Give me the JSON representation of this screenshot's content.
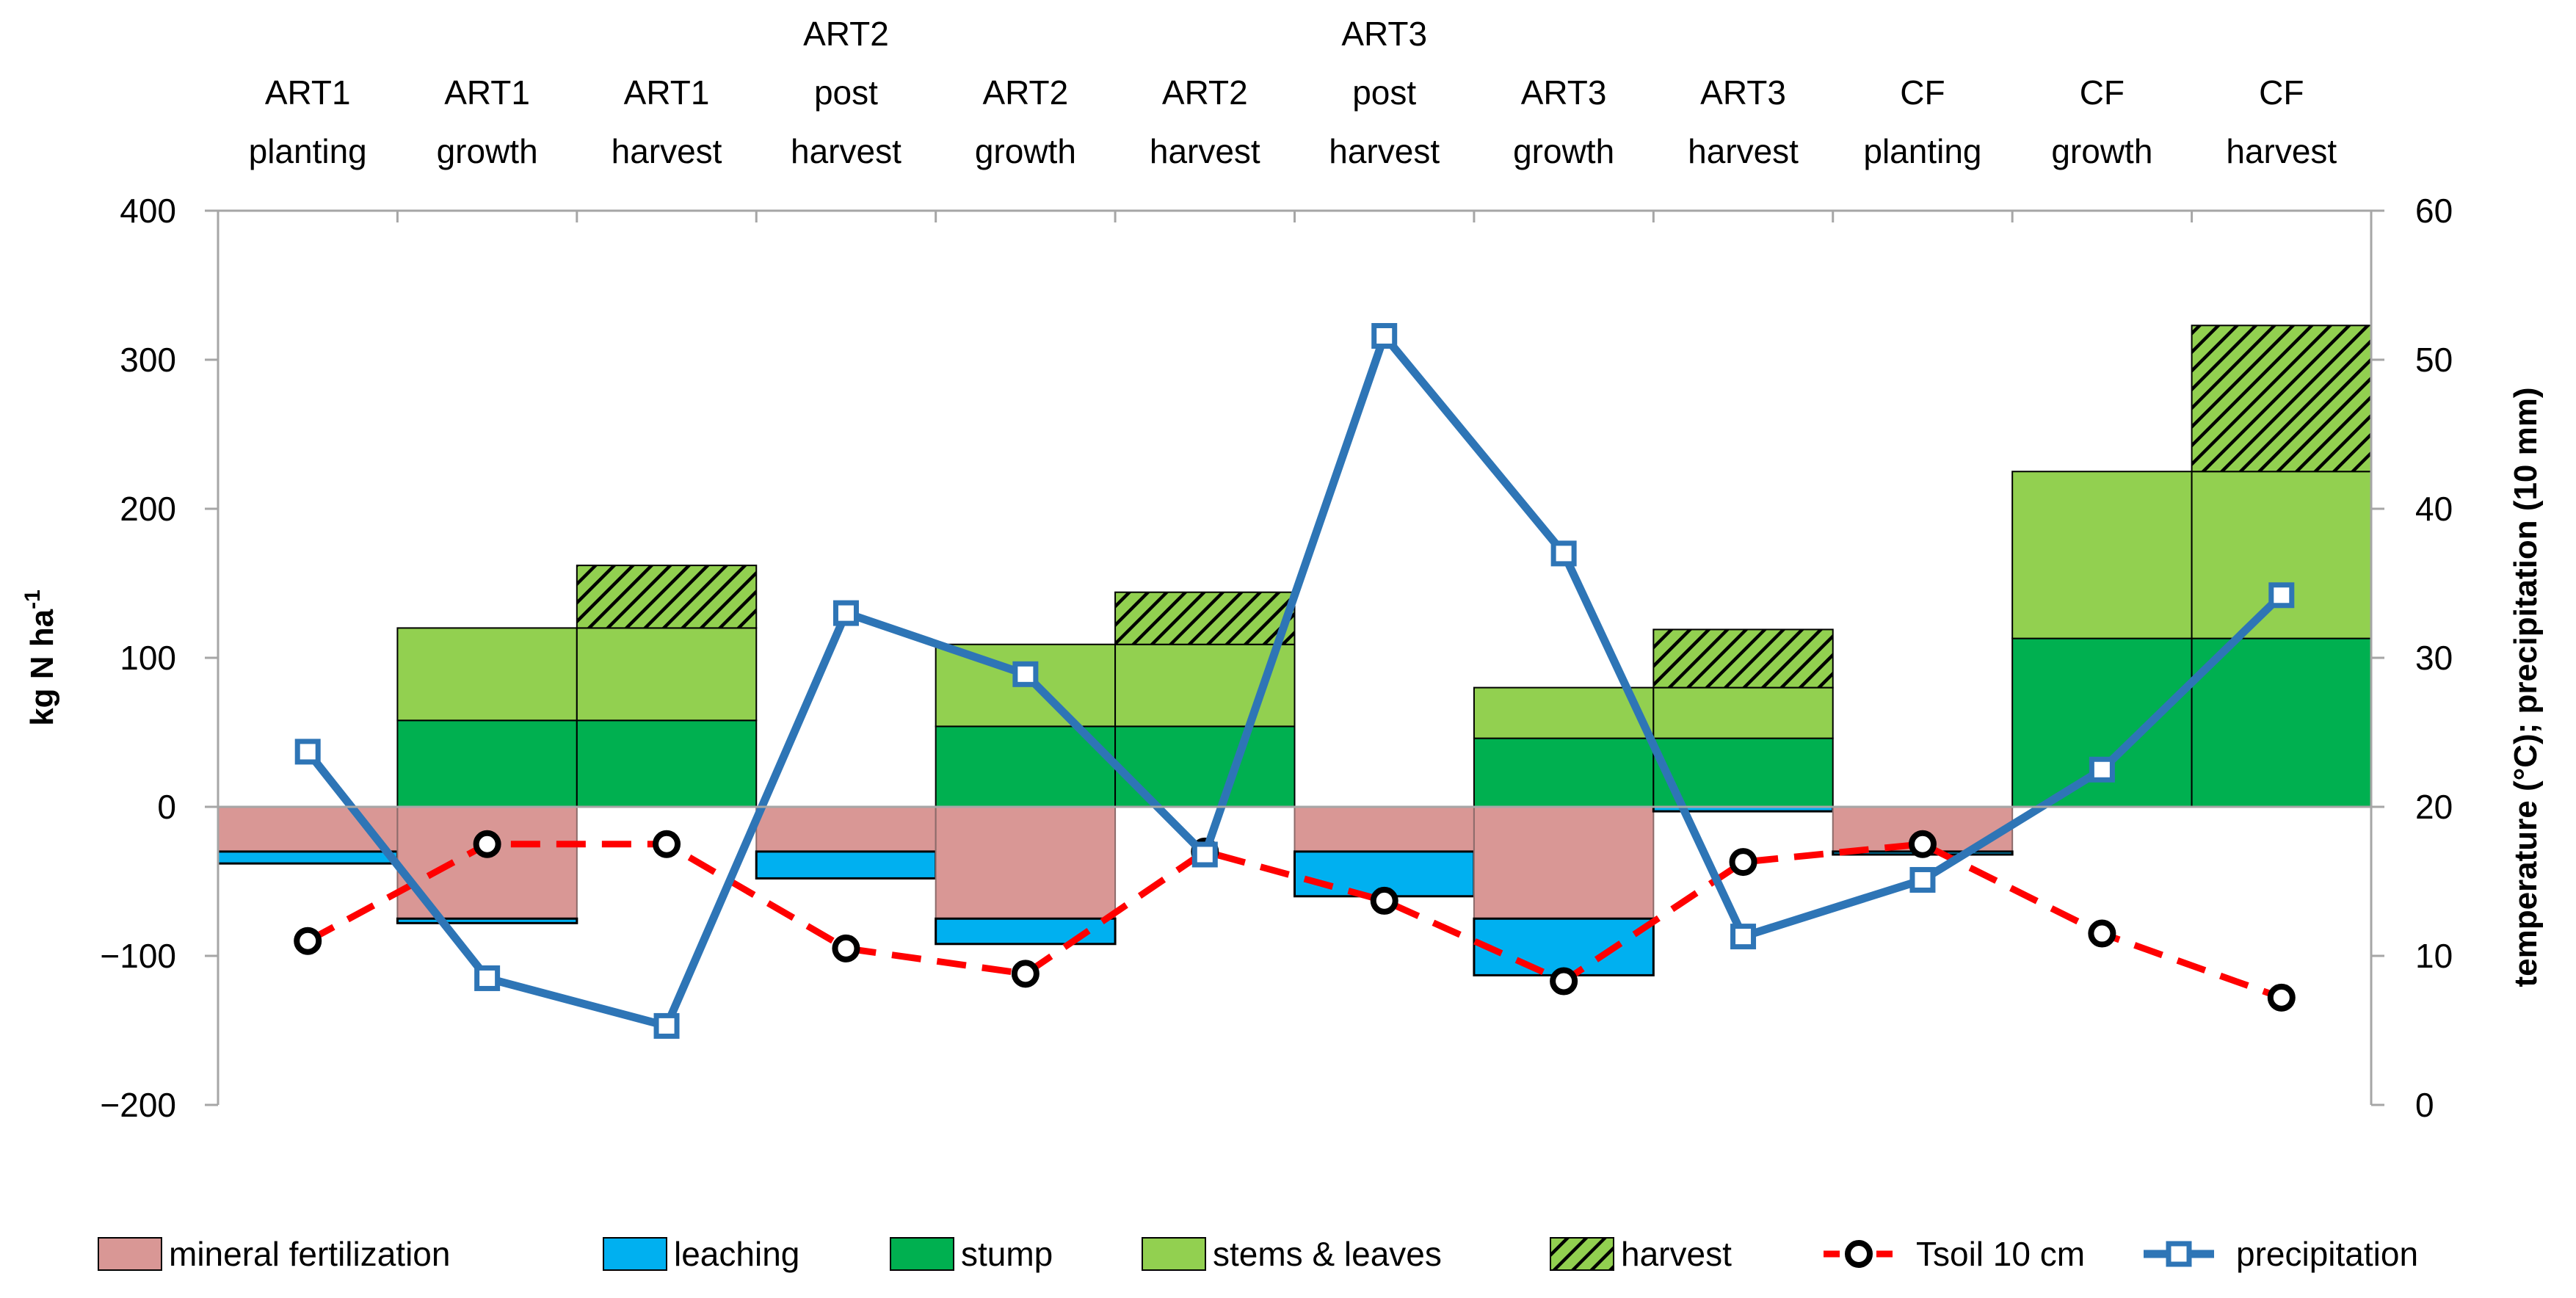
{
  "chart_data": {
    "type": "bar+line",
    "categories": [
      [
        "ART1",
        "planting"
      ],
      [
        "ART1",
        "growth"
      ],
      [
        "ART1",
        "harvest"
      ],
      [
        "ART2",
        "post",
        "harvest"
      ],
      [
        "ART2",
        "growth"
      ],
      [
        "ART2",
        "harvest"
      ],
      [
        "ART3",
        "post",
        "harvest"
      ],
      [
        "ART3",
        "growth"
      ],
      [
        "ART3",
        "harvest"
      ],
      [
        "CF",
        "planting"
      ],
      [
        "CF",
        "growth"
      ],
      [
        "CF",
        "harvest"
      ]
    ],
    "y_left": {
      "label": "kg N ha",
      "label_sup": "-1",
      "range": [
        -200,
        400
      ],
      "ticks": [
        "400",
        "300",
        "200",
        "100",
        "0",
        "−100",
        "−200"
      ]
    },
    "y_right": {
      "label": "temperature (°C);   precipitation (10 mm)",
      "range": [
        0,
        60
      ],
      "ticks": [
        "60",
        "50",
        "40",
        "30",
        "20",
        "10",
        "0"
      ]
    },
    "bar_series": [
      {
        "name": "mineral fertilization",
        "color": "#d99795",
        "pattern": "solid",
        "side": "negative",
        "values": [
          -30,
          -75,
          0,
          -30,
          -75,
          0,
          -30,
          -75,
          0,
          -30,
          0,
          0
        ]
      },
      {
        "name": "leaching",
        "color": "#00b0f0",
        "pattern": "solid",
        "side": "negative",
        "values": [
          -8,
          -3,
          0,
          -18,
          -17,
          0,
          -30,
          -38,
          -3,
          -2,
          0,
          0
        ]
      },
      {
        "name": "stump",
        "color": "#00b050",
        "pattern": "solid",
        "side": "positive",
        "values": [
          0,
          58,
          58,
          0,
          54,
          54,
          0,
          46,
          46,
          0,
          113,
          113
        ]
      },
      {
        "name": "stems & leaves",
        "color": "#92d050",
        "pattern": "solid",
        "side": "positive",
        "values": [
          0,
          62,
          62,
          0,
          55,
          55,
          0,
          34,
          34,
          0,
          112,
          112
        ]
      },
      {
        "name": "harvest",
        "color": "#92d050",
        "pattern": "hatch",
        "side": "positive",
        "values": [
          0,
          0,
          42,
          0,
          0,
          35,
          0,
          0,
          39,
          0,
          0,
          98
        ]
      }
    ],
    "line_series": [
      {
        "name": "Tsoil 10 cm",
        "color": "#ff0000",
        "style": "dashed",
        "marker": "circle",
        "axis": "right",
        "values": [
          11,
          17.5,
          17.5,
          10.5,
          8.8,
          17,
          13.7,
          8.3,
          16.3,
          17.5,
          11.5,
          7.2
        ]
      },
      {
        "name": "precipitation",
        "color": "#2e75b6",
        "style": "solid",
        "marker": "square",
        "axis": "right",
        "values": [
          23.7,
          8.5,
          5.3,
          33,
          28.9,
          16.8,
          51.6,
          37,
          11.3,
          15.1,
          22.5,
          34.2
        ]
      }
    ],
    "legend": {
      "position": "bottom",
      "entries": [
        "mineral fertilization",
        "leaching",
        "stump",
        "stems & leaves",
        "harvest",
        "Tsoil 10 cm",
        "precipitation"
      ]
    }
  }
}
